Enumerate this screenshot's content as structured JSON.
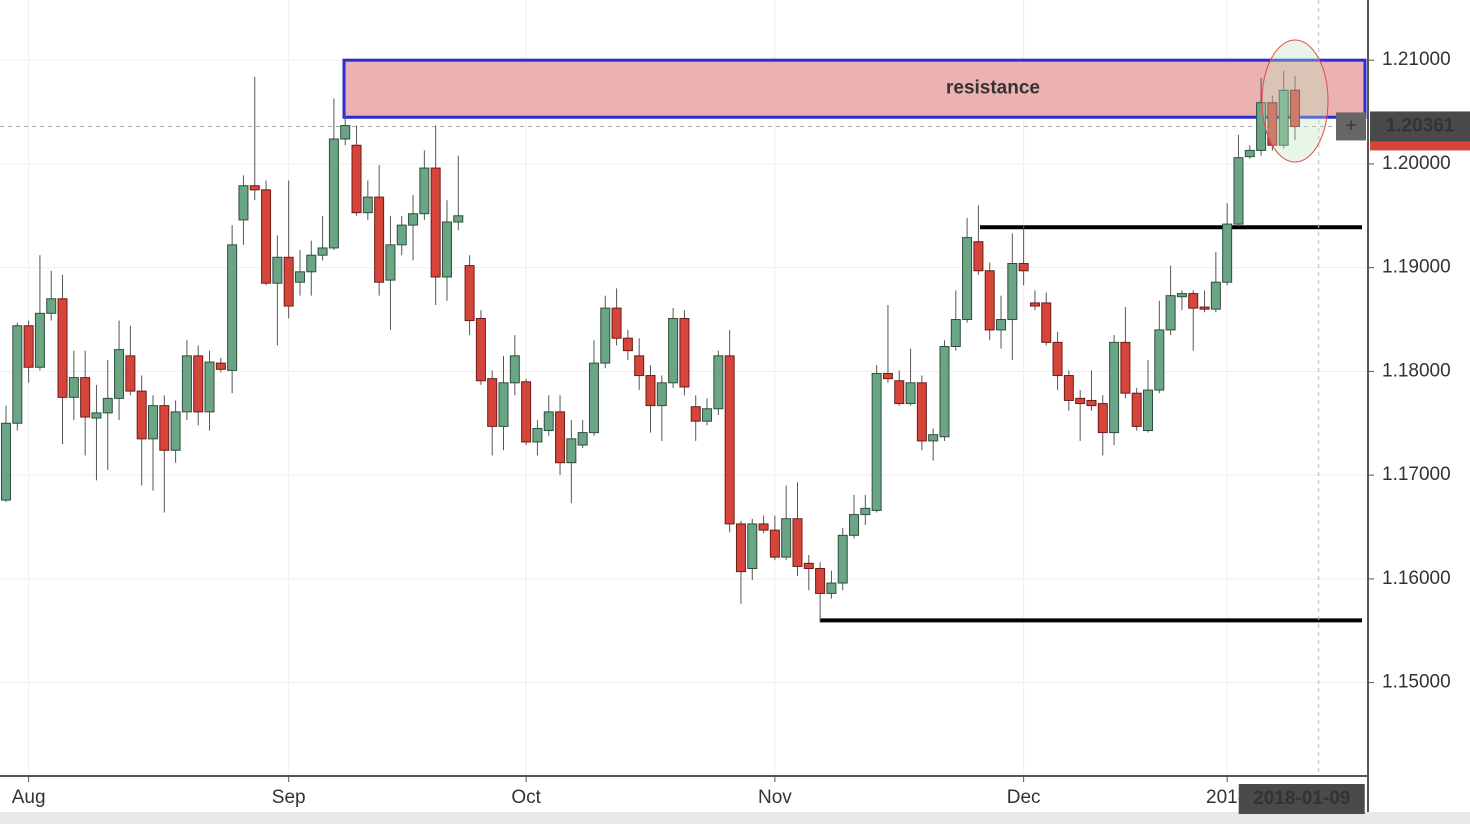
{
  "chart_data": {
    "type": "candlestick",
    "categories": [
      null,
      null,
      "Aug",
      null,
      null,
      null,
      null,
      null,
      null,
      null,
      null,
      null,
      null,
      null,
      null,
      null,
      null,
      null,
      null,
      null,
      null,
      null,
      null,
      null,
      null,
      "Sep",
      null,
      null,
      null,
      null,
      null,
      null,
      null,
      null,
      null,
      null,
      null,
      null,
      null,
      null,
      null,
      null,
      null,
      null,
      null,
      null,
      "Oct",
      null,
      null,
      null,
      null,
      null,
      null,
      null,
      null,
      null,
      null,
      null,
      null,
      null,
      null,
      null,
      null,
      null,
      null,
      null,
      null,
      null,
      "Nov",
      null,
      null,
      null,
      null,
      null,
      null,
      null,
      null,
      null,
      null,
      null,
      null,
      null,
      null,
      null,
      null,
      null,
      null,
      null,
      null,
      null,
      "Dec",
      null,
      null,
      null,
      null,
      null,
      null,
      null,
      null,
      null,
      null,
      null,
      null,
      null,
      null,
      null,
      null,
      null,
      "2018",
      null,
      null,
      null,
      null,
      null,
      null
    ],
    "open": [
      1.1676,
      1.175,
      1.1844,
      1.1804,
      1.1856,
      1.187,
      1.1775,
      1.1794,
      1.1755,
      1.176,
      1.1774,
      1.1815,
      1.1781,
      1.1735,
      1.1767,
      1.1724,
      1.1761,
      1.1815,
      1.1761,
      1.1808,
      1.1801,
      1.1946,
      1.1979,
      1.1975,
      1.1885,
      1.191,
      1.1886,
      1.1896,
      1.1912,
      1.1919,
      1.2024,
      1.2018,
      1.1953,
      1.1968,
      1.1888,
      1.1922,
      1.1941,
      1.1952,
      1.1996,
      1.1891,
      1.1944,
      1.1902,
      1.1851,
      1.1793,
      1.1747,
      1.1789,
      1.179,
      1.1732,
      1.1743,
      1.1761,
      1.1712,
      1.1729,
      1.1741,
      1.1808,
      1.1861,
      1.1832,
      1.1815,
      1.1796,
      1.1767,
      1.1789,
      1.1851,
      1.1766,
      1.1752,
      1.1764,
      1.1815,
      1.1653,
      1.161,
      1.1653,
      1.1647,
      1.1621,
      1.1658,
      1.1615,
      1.161,
      1.1586,
      1.1596,
      1.1642,
      1.1662,
      1.1666,
      1.1798,
      1.1791,
      1.1769,
      1.1789,
      1.1733,
      1.1737,
      1.1824,
      1.185,
      1.1925,
      1.1897,
      1.184,
      1.185,
      1.1904,
      1.1866,
      1.1866,
      1.1828,
      1.1796,
      1.1774,
      1.1772,
      1.1769,
      1.1741,
      1.1828,
      1.1779,
      1.1743,
      1.1782,
      1.184,
      1.1872,
      1.1875,
      1.1862,
      1.186,
      1.1886,
      1.1942,
      1.2007,
      1.2013,
      1.2059,
      1.2018,
      1.2071
    ],
    "high": [
      1.1767,
      1.1847,
      1.1849,
      1.1912,
      1.1897,
      1.1893,
      1.182,
      1.182,
      1.1787,
      1.1811,
      1.1849,
      1.1844,
      1.1796,
      1.1777,
      1.1777,
      1.1772,
      1.183,
      1.1825,
      1.182,
      1.1813,
      1.1941,
      1.1989,
      1.2084,
      1.1984,
      1.1931,
      1.1984,
      1.1917,
      1.1926,
      1.195,
      1.2063,
      1.205,
      1.2037,
      1.1984,
      1.1999,
      1.195,
      1.195,
      1.197,
      1.2013,
      1.2037,
      1.1965,
      1.2008,
      1.1912,
      1.1859,
      1.1801,
      1.1815,
      1.1835,
      1.1793,
      1.1753,
      1.1777,
      1.1777,
      1.1753,
      1.1753,
      1.183,
      1.1873,
      1.188,
      1.184,
      1.1832,
      1.1806,
      1.1796,
      1.1861,
      1.1859,
      1.1777,
      1.1774,
      1.182,
      1.184,
      1.1656,
      1.1658,
      1.1661,
      1.1661,
      1.169,
      1.1693,
      1.1623,
      1.1616,
      1.1608,
      1.1649,
      1.1681,
      1.1681,
      1.1806,
      1.1864,
      1.1801,
      1.1822,
      1.1796,
      1.1745,
      1.183,
      1.1878,
      1.1948,
      1.196,
      1.1905,
      1.1873,
      1.1933,
      1.1941,
      1.1878,
      1.1876,
      1.1838,
      1.1801,
      1.1782,
      1.1801,
      1.1777,
      1.1835,
      1.1862,
      1.1784,
      1.1811,
      1.1868,
      1.1902,
      1.1878,
      1.1878,
      1.1878,
      1.1915,
      1.1962,
      1.2028,
      1.2018,
      1.2083,
      1.2066,
      1.209,
      1.2085
    ],
    "low": [
      1.1674,
      1.1743,
      1.1789,
      1.1801,
      1.1849,
      1.173,
      1.1753,
      1.1719,
      1.1695,
      1.1705,
      1.1753,
      1.1777,
      1.169,
      1.1685,
      1.1664,
      1.1712,
      1.1753,
      1.1748,
      1.1743,
      1.1799,
      1.1779,
      1.1922,
      1.1965,
      1.1883,
      1.1825,
      1.1851,
      1.1873,
      1.1873,
      1.1907,
      1.1917,
      1.2018,
      1.195,
      1.1946,
      1.1873,
      1.184,
      1.1912,
      1.1907,
      1.1946,
      1.1864,
      1.1868,
      1.1936,
      1.1835,
      1.1787,
      1.1719,
      1.1724,
      1.1777,
      1.1729,
      1.1719,
      1.1738,
      1.17,
      1.1673,
      1.1726,
      1.1738,
      1.1803,
      1.1825,
      1.1811,
      1.1782,
      1.1741,
      1.1733,
      1.1784,
      1.1777,
      1.1733,
      1.1748,
      1.1758,
      1.1645,
      1.1576,
      1.1599,
      1.1644,
      1.1618,
      1.1618,
      1.1603,
      1.1589,
      1.1558,
      1.1581,
      1.1589,
      1.1639,
      1.1652,
      1.1664,
      1.1789,
      1.1767,
      1.1767,
      1.1724,
      1.1714,
      1.1733,
      1.182,
      1.1847,
      1.1893,
      1.183,
      1.1822,
      1.1811,
      1.1883,
      1.1859,
      1.1825,
      1.1782,
      1.1762,
      1.1733,
      1.1762,
      1.1719,
      1.1729,
      1.1774,
      1.1743,
      1.1741,
      1.1779,
      1.1835,
      1.1859,
      1.182,
      1.1857,
      1.1857,
      1.1883,
      1.194,
      1.2005,
      1.2008,
      1.2013,
      1.2015,
      1.2023
    ],
    "close": [
      1.175,
      1.1844,
      1.1804,
      1.1856,
      1.187,
      1.1775,
      1.1794,
      1.1756,
      1.176,
      1.1774,
      1.1821,
      1.1781,
      1.1735,
      1.1767,
      1.1724,
      1.1761,
      1.1815,
      1.1761,
      1.1809,
      1.1802,
      1.1922,
      1.1979,
      1.1975,
      1.1885,
      1.191,
      1.1863,
      1.1896,
      1.1912,
      1.1919,
      1.2024,
      1.2037,
      1.1953,
      1.1968,
      1.1886,
      1.1922,
      1.1941,
      1.1952,
      1.1996,
      1.1891,
      1.1944,
      1.195,
      1.1849,
      1.1791,
      1.1747,
      1.1789,
      1.1815,
      1.1732,
      1.1745,
      1.1761,
      1.1712,
      1.1735,
      1.1741,
      1.1808,
      1.1861,
      1.1832,
      1.182,
      1.1796,
      1.1767,
      1.1789,
      1.1851,
      1.1785,
      1.1752,
      1.1764,
      1.1815,
      1.1653,
      1.1607,
      1.1653,
      1.1647,
      1.1621,
      1.1658,
      1.1612,
      1.161,
      1.1586,
      1.1596,
      1.1642,
      1.1662,
      1.1668,
      1.1798,
      1.1793,
      1.1769,
      1.1789,
      1.1733,
      1.1739,
      1.1824,
      1.185,
      1.1929,
      1.1897,
      1.184,
      1.185,
      1.1904,
      1.1897,
      1.1863,
      1.1828,
      1.1796,
      1.1772,
      1.1769,
      1.1767,
      1.1741,
      1.1828,
      1.1779,
      1.1747,
      1.1782,
      1.184,
      1.1873,
      1.1875,
      1.1861,
      1.186,
      1.1886,
      1.1942,
      1.2006,
      1.2013,
      1.2059,
      1.2018,
      1.2071,
      1.2036
    ],
    "colors": {
      "up": "#6aa585",
      "down": "#d5453b",
      "up_edge": "#2f4f3c",
      "down_edge": "#6e1c16",
      "wick": "#555555"
    },
    "ylim": [
      1.141,
      1.2158
    ],
    "yticks": [
      {
        "value": 1.15,
        "label": "1.15000"
      },
      {
        "value": 1.16,
        "label": "1.16000"
      },
      {
        "value": 1.17,
        "label": "1.17000"
      },
      {
        "value": 1.18,
        "label": "1.18000"
      },
      {
        "value": 1.19,
        "label": "1.19000"
      },
      {
        "value": 1.2,
        "label": "1.20000"
      },
      {
        "value": 1.21,
        "label": "1.21000"
      }
    ],
    "grid": true,
    "resistance": {
      "label": "resistance",
      "high": 1.21,
      "low": 1.2045,
      "color": "#ecb2b2",
      "edge": "#2b2bd8"
    },
    "support_levels": [
      1.1939,
      1.156
    ],
    "last_price": 1.20361,
    "crosshair_date": "2018-01-09"
  }
}
